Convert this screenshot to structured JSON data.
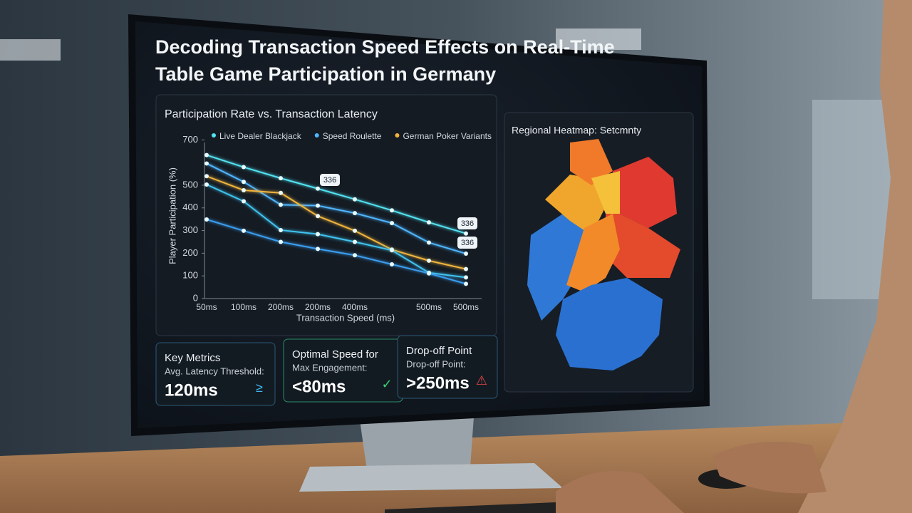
{
  "header": {
    "title_line1": "Decoding Transaction Speed Effects on Real-Time",
    "title_line2": "Table Game Participation in Germany"
  },
  "chart_data": {
    "type": "line",
    "title": "Participation Rate vs. Transaction Latency",
    "x_label": "Transaction Speed (ms)",
    "y_label": "Player Participation (%)",
    "categories": [
      "50ms",
      "100ms",
      "200ms",
      "200ms",
      "400ms",
      null,
      "500ms",
      "500ms"
    ],
    "series": [
      {
        "name": "Live Dealer Blackjack",
        "color": "#52e3f2",
        "values": [
          633,
          580,
          531,
          485,
          438,
          389,
          336,
          287
        ]
      },
      {
        "name": "Speed Roulette",
        "color": "#4fb6ff",
        "values": [
          596,
          515,
          414,
          410,
          377,
          333,
          247,
          198
        ]
      },
      {
        "name": "German Poker Variants",
        "color": "#f0b43c",
        "values": [
          540,
          478,
          466,
          364,
          299,
          216,
          167,
          130
        ]
      },
      {
        "color": "#3fc4f0",
        "values": [
          503,
          429,
          302,
          284,
          250,
          213,
          114,
          93
        ]
      },
      {
        "color": "#3a9ef0",
        "values": [
          349,
          299,
          250,
          219,
          191,
          151,
          111,
          65
        ]
      }
    ],
    "ylim": [
      0,
      720
    ],
    "yticks": [
      0,
      100,
      200,
      300,
      400,
      500,
      700
    ],
    "annotations": [
      "336",
      "336",
      "336"
    ]
  },
  "heatmap": {
    "title": "Regional Heatmap: Setcmnty"
  },
  "cards": [
    {
      "title": "Key Metrics",
      "subtitle": "Avg. Latency Threshold:",
      "value": "120ms"
    },
    {
      "title": "Optimal Speed for",
      "subtitle": "Max Engagement:",
      "value": "<80ms"
    },
    {
      "title": "Drop-off Point",
      "subtitle": "Drop-off Point:",
      "value": ">250ms"
    }
  ]
}
